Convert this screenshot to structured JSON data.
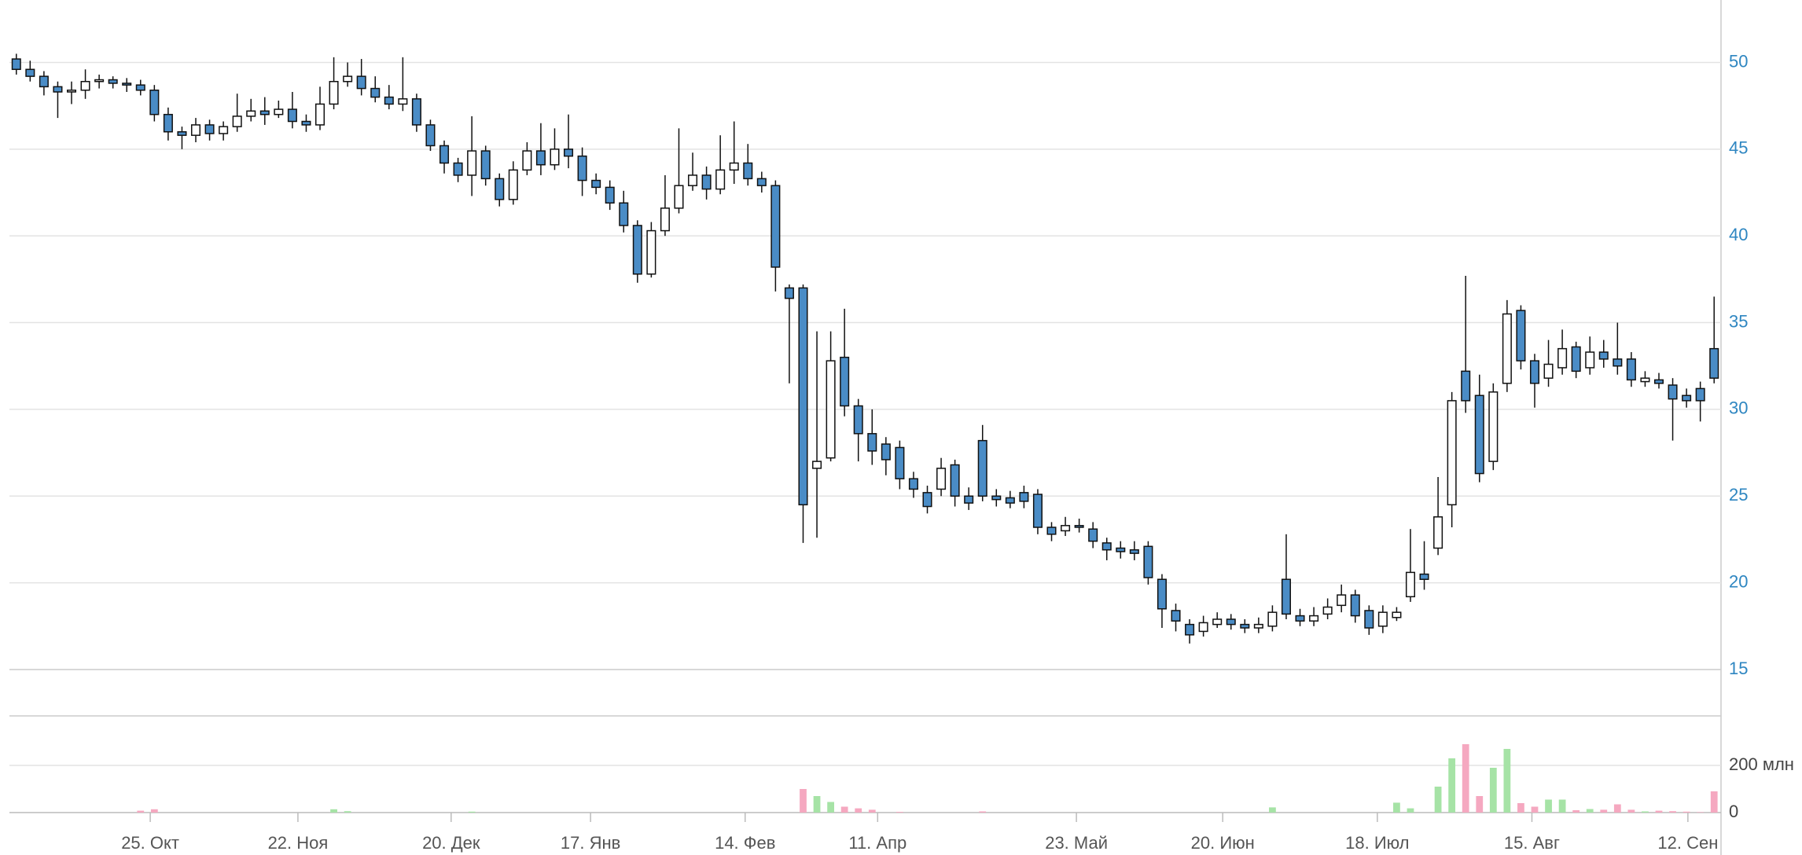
{
  "chart_data": {
    "type": "candlestick",
    "up_color": "#ffffff",
    "down_color": "#4a8cc6",
    "volume_up_color": "#a6e3a6",
    "volume_down_color": "#f5a8c0",
    "grid": true,
    "xlim": [
      -0.5,
      123.5
    ],
    "xticks": [
      {
        "value": 9.7,
        "label": "25. Окт"
      },
      {
        "value": 20.4,
        "label": "22. Ноя"
      },
      {
        "value": 31.5,
        "label": "20. Дек"
      },
      {
        "value": 41.6,
        "label": "17. Янв"
      },
      {
        "value": 52.8,
        "label": "14. Фев"
      },
      {
        "value": 62.4,
        "label": "11. Апр"
      },
      {
        "value": 76.8,
        "label": "23. Май"
      },
      {
        "value": 87.4,
        "label": "20. Июн"
      },
      {
        "value": 98.6,
        "label": "18. Июл"
      },
      {
        "value": 109.8,
        "label": "15. Авг"
      },
      {
        "value": 121.1,
        "label": "12. Сен"
      }
    ],
    "ylim": [
      15,
      53.6
    ],
    "yticks": [
      15,
      20,
      25,
      30,
      35,
      40,
      45,
      50
    ],
    "volume_ylim": [
      0,
      410
    ],
    "volume_yticks": [
      0,
      {
        "value": 200,
        "label": "200 млн"
      }
    ],
    "open": [
      50.2,
      49.6,
      49.2,
      48.6,
      48.3,
      48.4,
      48.9,
      49.0,
      48.8,
      48.7,
      48.4,
      47.0,
      46.0,
      45.8,
      46.4,
      45.9,
      46.3,
      46.9,
      47.2,
      47.0,
      47.3,
      46.6,
      46.4,
      47.6,
      48.9,
      49.2,
      48.5,
      48.0,
      47.6,
      47.9,
      46.4,
      45.2,
      44.2,
      43.5,
      44.9,
      43.3,
      42.1,
      43.8,
      44.9,
      44.1,
      45.0,
      44.6,
      43.2,
      42.8,
      41.9,
      40.6,
      37.8,
      40.3,
      41.6,
      42.9,
      43.5,
      42.7,
      43.8,
      44.2,
      43.3,
      42.9,
      37.0,
      37.0,
      26.6,
      27.2,
      33.0,
      30.2,
      28.6,
      28.0,
      27.8,
      26.0,
      25.2,
      25.4,
      26.8,
      25.0,
      28.2,
      25.0,
      24.9,
      25.2,
      25.1,
      23.2,
      23.0,
      23.3,
      23.1,
      22.3,
      22.0,
      21.9,
      22.1,
      20.2,
      18.4,
      17.6,
      17.2,
      17.6,
      17.9,
      17.6,
      17.4,
      17.5,
      20.2,
      18.1,
      17.8,
      18.2,
      18.7,
      19.3,
      18.4,
      17.5,
      18.0,
      19.2,
      20.5,
      22.0,
      24.5,
      32.2,
      30.8,
      27.0,
      31.5,
      35.7,
      32.8,
      31.8,
      32.4,
      33.6,
      32.4,
      33.3,
      32.9,
      32.9,
      31.6,
      31.7,
      31.4,
      30.8,
      31.2,
      33.5
    ],
    "high": [
      50.5,
      50.1,
      49.5,
      48.9,
      48.9,
      49.6,
      49.3,
      49.2,
      49.1,
      49.0,
      48.7,
      47.4,
      46.3,
      46.8,
      46.7,
      46.6,
      48.2,
      47.9,
      48.0,
      47.8,
      48.3,
      47.0,
      48.6,
      50.3,
      50.0,
      50.2,
      49.2,
      48.7,
      50.3,
      48.2,
      46.7,
      45.5,
      44.5,
      46.9,
      45.2,
      43.6,
      44.3,
      45.4,
      46.5,
      46.2,
      47.0,
      45.1,
      43.6,
      43.2,
      42.6,
      40.9,
      40.8,
      43.5,
      46.2,
      44.8,
      44.0,
      45.8,
      46.6,
      45.3,
      43.7,
      43.2,
      37.2,
      37.2,
      34.5,
      34.5,
      35.8,
      30.6,
      30.0,
      28.4,
      28.2,
      26.4,
      25.6,
      27.2,
      27.1,
      25.5,
      29.1,
      25.4,
      25.3,
      25.6,
      25.4,
      23.5,
      23.8,
      23.7,
      23.5,
      22.6,
      22.4,
      22.4,
      22.4,
      20.5,
      18.8,
      17.9,
      18.1,
      18.3,
      18.2,
      17.9,
      18.0,
      18.7,
      22.8,
      18.5,
      18.6,
      19.1,
      19.9,
      19.6,
      18.7,
      18.7,
      18.6,
      23.1,
      22.4,
      26.1,
      31.0,
      37.7,
      32.0,
      31.5,
      36.3,
      36.0,
      33.2,
      34.0,
      34.6,
      33.9,
      34.2,
      34.0,
      35.0,
      33.3,
      32.2,
      32.1,
      31.8,
      31.2,
      31.6,
      36.5
    ],
    "low": [
      49.3,
      48.9,
      48.1,
      46.8,
      47.6,
      47.9,
      48.5,
      48.5,
      48.3,
      48.1,
      46.6,
      45.5,
      45.0,
      45.4,
      45.5,
      45.5,
      46.0,
      46.6,
      46.4,
      46.8,
      46.2,
      46.0,
      46.1,
      47.3,
      48.6,
      48.1,
      47.7,
      47.3,
      47.2,
      46.0,
      44.9,
      43.6,
      43.1,
      42.3,
      42.9,
      41.7,
      41.8,
      43.5,
      43.5,
      43.8,
      43.9,
      42.3,
      42.4,
      41.5,
      40.2,
      37.3,
      37.6,
      40.0,
      41.3,
      42.6,
      42.1,
      42.4,
      43.0,
      42.9,
      42.5,
      36.8,
      31.5,
      22.3,
      22.6,
      27.0,
      29.6,
      27.0,
      26.8,
      26.2,
      25.4,
      24.9,
      24.0,
      25.0,
      24.4,
      24.2,
      24.7,
      24.4,
      24.3,
      24.3,
      22.8,
      22.4,
      22.7,
      22.9,
      22.0,
      21.3,
      21.4,
      21.3,
      19.9,
      17.4,
      17.2,
      16.5,
      16.9,
      17.4,
      17.3,
      17.1,
      17.1,
      17.2,
      17.9,
      17.5,
      17.5,
      17.9,
      18.3,
      17.7,
      17.0,
      17.1,
      17.8,
      18.9,
      19.6,
      21.6,
      23.2,
      29.8,
      25.8,
      26.5,
      31.0,
      32.3,
      30.1,
      31.3,
      32.0,
      31.8,
      32.0,
      32.4,
      32.0,
      31.3,
      31.3,
      31.2,
      28.2,
      30.1,
      29.3,
      31.5
    ],
    "close": [
      49.6,
      49.2,
      48.6,
      48.3,
      48.4,
      48.9,
      49.0,
      48.8,
      48.7,
      48.4,
      47.0,
      46.0,
      45.8,
      46.4,
      45.9,
      46.3,
      46.9,
      47.2,
      47.0,
      47.3,
      46.6,
      46.4,
      47.6,
      48.9,
      49.2,
      48.5,
      48.0,
      47.6,
      47.9,
      46.4,
      45.2,
      44.2,
      43.5,
      44.9,
      43.3,
      42.1,
      43.8,
      44.9,
      44.1,
      45.0,
      44.6,
      43.2,
      42.8,
      41.9,
      40.6,
      37.8,
      40.3,
      41.6,
      42.9,
      43.5,
      42.7,
      43.8,
      44.2,
      43.3,
      42.9,
      38.2,
      36.4,
      24.5,
      27.0,
      32.8,
      30.2,
      28.6,
      27.6,
      27.1,
      26.0,
      25.4,
      24.4,
      26.6,
      25.0,
      24.6,
      25.0,
      24.8,
      24.6,
      24.7,
      23.2,
      22.8,
      23.3,
      23.2,
      22.4,
      21.9,
      21.8,
      21.7,
      20.3,
      18.5,
      17.8,
      17.0,
      17.7,
      17.9,
      17.6,
      17.4,
      17.6,
      18.3,
      18.2,
      17.8,
      18.1,
      18.6,
      19.3,
      18.1,
      17.4,
      18.3,
      18.3,
      20.6,
      20.2,
      23.8,
      30.5,
      30.5,
      26.3,
      31.0,
      35.5,
      32.8,
      31.5,
      32.6,
      33.5,
      32.2,
      33.3,
      32.9,
      32.5,
      31.7,
      31.8,
      31.5,
      30.6,
      30.5,
      30.5,
      31.8
    ],
    "volume": [
      0,
      0,
      0,
      0,
      0,
      0,
      0,
      0,
      0,
      8,
      14,
      0,
      0,
      0,
      0,
      0,
      0,
      0,
      0,
      0,
      0,
      0,
      0,
      14,
      6,
      0,
      0,
      0,
      0,
      0,
      0,
      0,
      0,
      4,
      0,
      0,
      0,
      0,
      0,
      0,
      0,
      0,
      0,
      0,
      0,
      0,
      0,
      0,
      0,
      0,
      0,
      0,
      0,
      0,
      0,
      0,
      0,
      100,
      70,
      45,
      25,
      18,
      12,
      0,
      3,
      0,
      0,
      0,
      0,
      0,
      5,
      0,
      0,
      0,
      0,
      0,
      0,
      0,
      0,
      0,
      0,
      0,
      0,
      0,
      0,
      0,
      0,
      0,
      0,
      0,
      0,
      22,
      0,
      0,
      0,
      0,
      0,
      0,
      0,
      0,
      42,
      18,
      0,
      110,
      230,
      290,
      70,
      190,
      270,
      40,
      25,
      55,
      55,
      10,
      15,
      12,
      35,
      12,
      5,
      8,
      6,
      4,
      2,
      90
    ]
  }
}
